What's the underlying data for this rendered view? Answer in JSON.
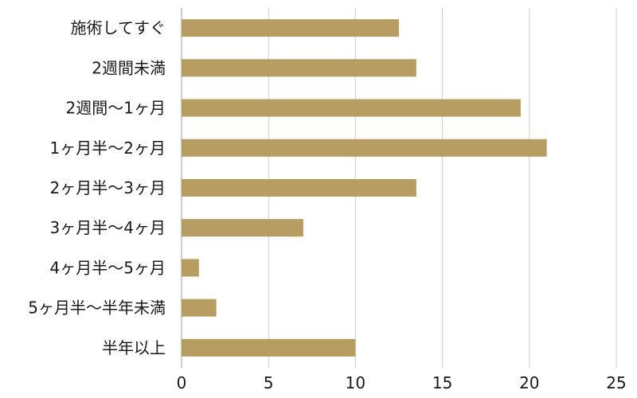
{
  "chart_data": {
    "type": "bar",
    "orientation": "horizontal",
    "categories": [
      "施術してすぐ",
      "2週間未満",
      "2週間〜1ヶ月",
      "1ヶ月半〜2ヶ月",
      "2ヶ月半〜3ヶ月",
      "3ヶ月半〜4ヶ月",
      "4ヶ月半〜5ヶ月",
      "5ヶ月半〜半年未満",
      "半年以上"
    ],
    "values": [
      12.5,
      13.5,
      19.5,
      21,
      13.5,
      7,
      1,
      2,
      10
    ],
    "xlim": [
      0,
      25
    ],
    "xticks": [
      0,
      5,
      10,
      15,
      20,
      25
    ],
    "grid": true,
    "bar_color": "#B89D63",
    "title": "",
    "xlabel": "",
    "ylabel": ""
  }
}
